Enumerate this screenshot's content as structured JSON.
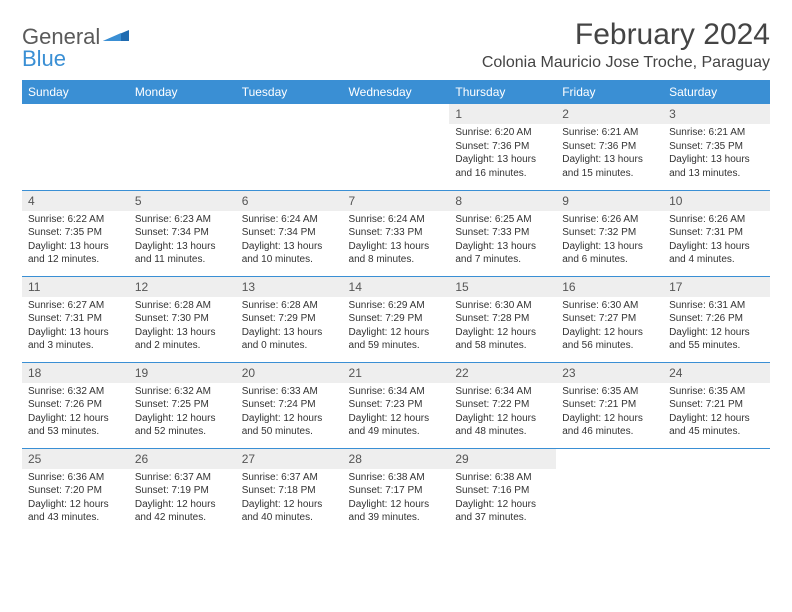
{
  "logo": {
    "text1": "General",
    "text2": "Blue"
  },
  "title": "February 2024",
  "location": "Colonia Mauricio Jose Troche, Paraguay",
  "colors": {
    "header_bg": "#3a8fd4",
    "header_text": "#ffffff",
    "daynum_bg": "#eeeeee",
    "border": "#3a8fd4",
    "body_text": "#333333",
    "title_text": "#444444"
  },
  "columns": [
    "Sunday",
    "Monday",
    "Tuesday",
    "Wednesday",
    "Thursday",
    "Friday",
    "Saturday"
  ],
  "weeks": [
    [
      null,
      null,
      null,
      null,
      {
        "n": "1",
        "sunrise": "6:20 AM",
        "sunset": "7:36 PM",
        "daylight": "13 hours and 16 minutes."
      },
      {
        "n": "2",
        "sunrise": "6:21 AM",
        "sunset": "7:36 PM",
        "daylight": "13 hours and 15 minutes."
      },
      {
        "n": "3",
        "sunrise": "6:21 AM",
        "sunset": "7:35 PM",
        "daylight": "13 hours and 13 minutes."
      }
    ],
    [
      {
        "n": "4",
        "sunrise": "6:22 AM",
        "sunset": "7:35 PM",
        "daylight": "13 hours and 12 minutes."
      },
      {
        "n": "5",
        "sunrise": "6:23 AM",
        "sunset": "7:34 PM",
        "daylight": "13 hours and 11 minutes."
      },
      {
        "n": "6",
        "sunrise": "6:24 AM",
        "sunset": "7:34 PM",
        "daylight": "13 hours and 10 minutes."
      },
      {
        "n": "7",
        "sunrise": "6:24 AM",
        "sunset": "7:33 PM",
        "daylight": "13 hours and 8 minutes."
      },
      {
        "n": "8",
        "sunrise": "6:25 AM",
        "sunset": "7:33 PM",
        "daylight": "13 hours and 7 minutes."
      },
      {
        "n": "9",
        "sunrise": "6:26 AM",
        "sunset": "7:32 PM",
        "daylight": "13 hours and 6 minutes."
      },
      {
        "n": "10",
        "sunrise": "6:26 AM",
        "sunset": "7:31 PM",
        "daylight": "13 hours and 4 minutes."
      }
    ],
    [
      {
        "n": "11",
        "sunrise": "6:27 AM",
        "sunset": "7:31 PM",
        "daylight": "13 hours and 3 minutes."
      },
      {
        "n": "12",
        "sunrise": "6:28 AM",
        "sunset": "7:30 PM",
        "daylight": "13 hours and 2 minutes."
      },
      {
        "n": "13",
        "sunrise": "6:28 AM",
        "sunset": "7:29 PM",
        "daylight": "13 hours and 0 minutes."
      },
      {
        "n": "14",
        "sunrise": "6:29 AM",
        "sunset": "7:29 PM",
        "daylight": "12 hours and 59 minutes."
      },
      {
        "n": "15",
        "sunrise": "6:30 AM",
        "sunset": "7:28 PM",
        "daylight": "12 hours and 58 minutes."
      },
      {
        "n": "16",
        "sunrise": "6:30 AM",
        "sunset": "7:27 PM",
        "daylight": "12 hours and 56 minutes."
      },
      {
        "n": "17",
        "sunrise": "6:31 AM",
        "sunset": "7:26 PM",
        "daylight": "12 hours and 55 minutes."
      }
    ],
    [
      {
        "n": "18",
        "sunrise": "6:32 AM",
        "sunset": "7:26 PM",
        "daylight": "12 hours and 53 minutes."
      },
      {
        "n": "19",
        "sunrise": "6:32 AM",
        "sunset": "7:25 PM",
        "daylight": "12 hours and 52 minutes."
      },
      {
        "n": "20",
        "sunrise": "6:33 AM",
        "sunset": "7:24 PM",
        "daylight": "12 hours and 50 minutes."
      },
      {
        "n": "21",
        "sunrise": "6:34 AM",
        "sunset": "7:23 PM",
        "daylight": "12 hours and 49 minutes."
      },
      {
        "n": "22",
        "sunrise": "6:34 AM",
        "sunset": "7:22 PM",
        "daylight": "12 hours and 48 minutes."
      },
      {
        "n": "23",
        "sunrise": "6:35 AM",
        "sunset": "7:21 PM",
        "daylight": "12 hours and 46 minutes."
      },
      {
        "n": "24",
        "sunrise": "6:35 AM",
        "sunset": "7:21 PM",
        "daylight": "12 hours and 45 minutes."
      }
    ],
    [
      {
        "n": "25",
        "sunrise": "6:36 AM",
        "sunset": "7:20 PM",
        "daylight": "12 hours and 43 minutes."
      },
      {
        "n": "26",
        "sunrise": "6:37 AM",
        "sunset": "7:19 PM",
        "daylight": "12 hours and 42 minutes."
      },
      {
        "n": "27",
        "sunrise": "6:37 AM",
        "sunset": "7:18 PM",
        "daylight": "12 hours and 40 minutes."
      },
      {
        "n": "28",
        "sunrise": "6:38 AM",
        "sunset": "7:17 PM",
        "daylight": "12 hours and 39 minutes."
      },
      {
        "n": "29",
        "sunrise": "6:38 AM",
        "sunset": "7:16 PM",
        "daylight": "12 hours and 37 minutes."
      },
      null,
      null
    ]
  ],
  "labels": {
    "sunrise": "Sunrise: ",
    "sunset": "Sunset: ",
    "daylight": "Daylight: "
  }
}
